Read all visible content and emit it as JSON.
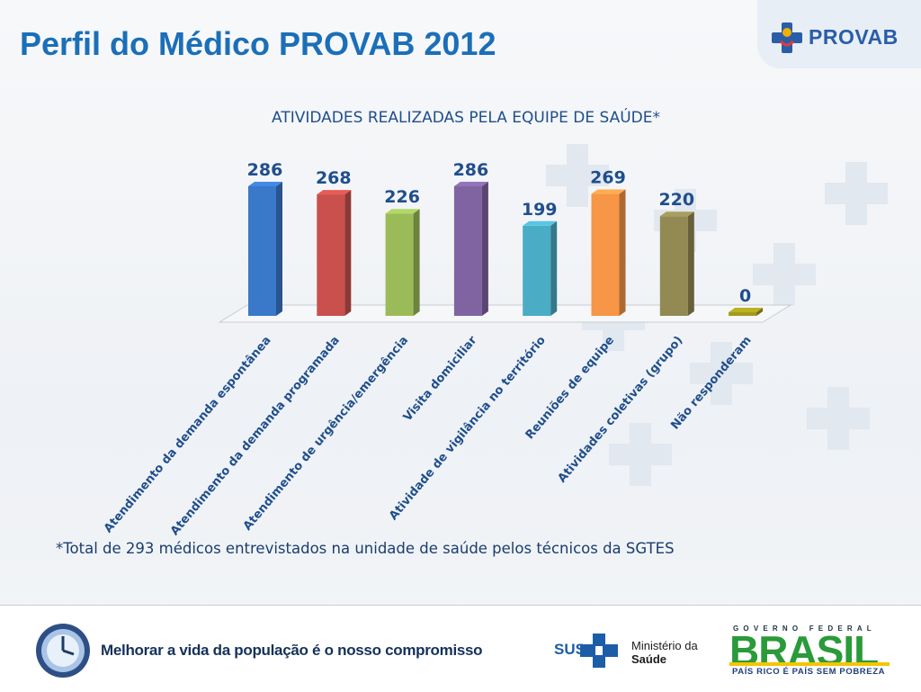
{
  "page": {
    "title": "Perfil do Médico PROVAB 2012"
  },
  "brand": {
    "provab_logo_text": "PROVAB"
  },
  "chart_data": {
    "type": "bar",
    "title": "ATIVIDADES REALIZADAS PELA EQUIPE DE SAÚDE*",
    "categories": [
      "Atendimento da demanda espontânea",
      "Atendimento da demanda programada",
      "Atendimento de urgência/emergência",
      "Visita domiciliar",
      "Atividade de vigilância no território",
      "Reuniões de equipe",
      "Atividades coletivas (grupo)",
      "Não responderam"
    ],
    "values": [
      286,
      268,
      226,
      286,
      199,
      269,
      220,
      0
    ],
    "colors": [
      "#3a78c9",
      "#c9504c",
      "#9bbb59",
      "#8064a2",
      "#4bacc6",
      "#f79646",
      "#938953",
      "#a39a1e"
    ],
    "value_label_color": "#1f4e8c",
    "ylim": [
      0,
      300
    ]
  },
  "footnote": "*Total de 293 médicos entrevistados  na unidade de saúde pelos técnicos da SGTES",
  "footer": {
    "slogan": "Melhorar a vida da população é o nosso compromisso",
    "sus_label": "SUS",
    "ministerio_line1": "Ministério da",
    "ministerio_line2": "Saúde",
    "gov_header": "GOVERNO FEDERAL",
    "brasil": "BRASIL",
    "brasil_sub": "PAÍS RICO É PAÍS SEM POBREZA"
  }
}
